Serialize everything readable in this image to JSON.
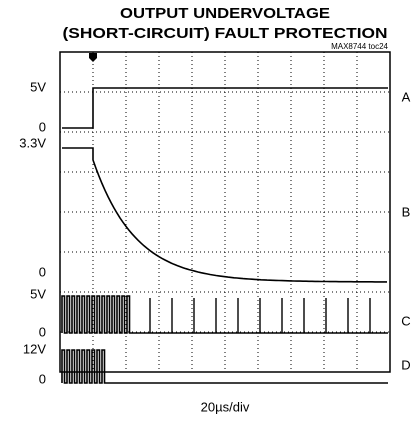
{
  "header": {
    "title": [
      "OUTPUT UNDERVOLTAGE",
      "(SHORT-CIRCUIT) FAULT PROTECTION"
    ],
    "figure_id": "MAX8744 toc24"
  },
  "left_labels": [
    "5V",
    "0",
    "3.3V",
    "0",
    "5V",
    "0",
    "12V",
    "0"
  ],
  "right_labels": [
    "A",
    "B",
    "C",
    "D"
  ],
  "timebase": "20µs/div"
}
